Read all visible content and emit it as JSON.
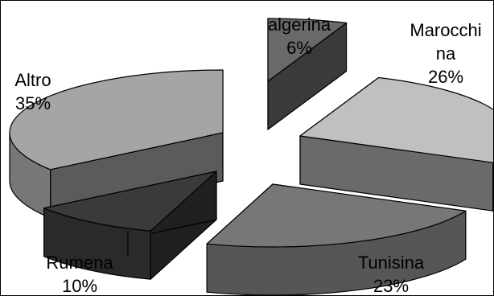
{
  "chart_data": {
    "type": "pie",
    "style": "3d-exploded",
    "title": "",
    "legend": "none",
    "slices": [
      {
        "label_lines": [
          "algerina"
        ],
        "percent_label": "6%",
        "value": 6,
        "color": "#696969"
      },
      {
        "label_lines": [
          "Marocchi",
          "na"
        ],
        "percent_label": "26%",
        "value": 26,
        "color": "#c0c0c0"
      },
      {
        "label_lines": [
          "Tunisina"
        ],
        "percent_label": "23%",
        "value": 23,
        "color": "#777777"
      },
      {
        "label_lines": [
          "Rumena"
        ],
        "percent_label": "10%",
        "value": 10,
        "color": "#3a3a3a"
      },
      {
        "label_lines": [
          "Altro"
        ],
        "percent_label": "35%",
        "value": 35,
        "color": "#a5a5a5"
      }
    ]
  }
}
